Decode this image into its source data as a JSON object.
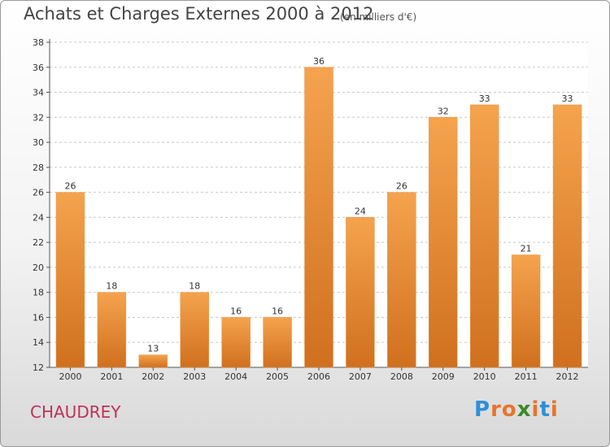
{
  "chart_data": {
    "type": "bar",
    "title": "Achats et Charges Externes 2000 à 2012",
    "subtitle": "(en milliers d'€)",
    "categories": [
      "2000",
      "2001",
      "2002",
      "2003",
      "2004",
      "2005",
      "2006",
      "2007",
      "2008",
      "2009",
      "2010",
      "2011",
      "2012"
    ],
    "values": [
      26,
      18,
      13,
      18,
      16,
      16,
      36,
      24,
      26,
      32,
      33,
      21,
      33
    ],
    "ylim": [
      12,
      38
    ],
    "yticks": [
      12,
      14,
      16,
      18,
      20,
      22,
      24,
      26,
      28,
      30,
      32,
      34,
      36,
      38
    ],
    "grid": true,
    "legend": "none",
    "bar_color_top": "#f5a34e",
    "bar_color_bottom": "#d0701e"
  },
  "commune": "CHAUDREY",
  "logo": {
    "letters": [
      "P",
      "r",
      "o",
      "x",
      "i",
      "t",
      "i"
    ],
    "colors": [
      "#2f8fd6",
      "#e8742a",
      "#e8742a",
      "#3a8a2a",
      "#e8742a",
      "#2f8fd6",
      "#e8742a"
    ]
  }
}
